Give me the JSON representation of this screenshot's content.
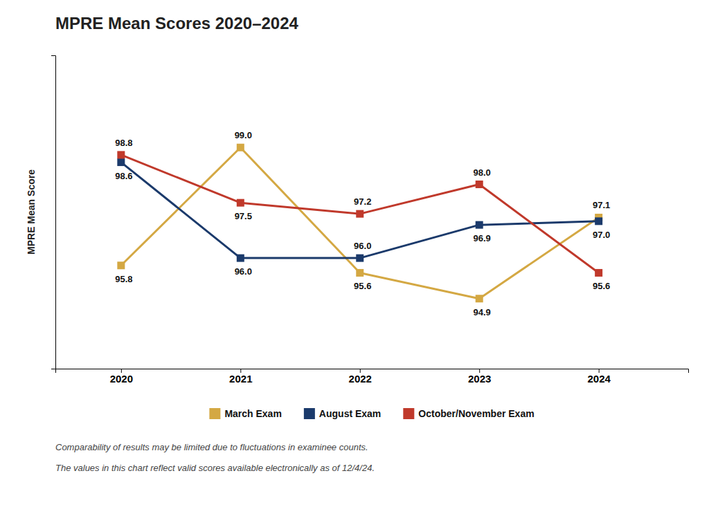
{
  "chart_data": {
    "type": "line",
    "title": "MPRE Mean Scores 2020–2024",
    "y_label": "MPRE Mean Score",
    "x": [
      2020,
      2021,
      2022,
      2023,
      2024
    ],
    "xlim": [
      2019.45,
      2024.75
    ],
    "xticks": [
      2020,
      2021,
      2022,
      2023,
      2024
    ],
    "ylim": [
      93.0,
      101.5
    ],
    "tick_labels": "x",
    "grid": false,
    "legend": "bottom",
    "data_labels": true,
    "marker": "square",
    "series": [
      {
        "name": "March Exam",
        "color": "#D4A843",
        "values": [
          95.8,
          99.0,
          95.6,
          94.9,
          97.1
        ],
        "value_labels": [
          "95.8",
          "99.0",
          "95.6",
          "94.9",
          "97.1"
        ]
      },
      {
        "name": "August Exam",
        "color": "#1B3A6B",
        "values": [
          98.6,
          96.0,
          96.0,
          96.9,
          97.0
        ],
        "value_labels": [
          "98.6",
          "96.0",
          "96.0",
          "96.9",
          "97.0"
        ]
      },
      {
        "name": "October/November Exam",
        "color": "#C0392B",
        "values": [
          98.8,
          97.5,
          97.2,
          98.0,
          95.6
        ],
        "value_labels": [
          "98.8",
          "97.5",
          "97.2",
          "98.0",
          "95.6"
        ]
      }
    ],
    "annotations": [
      "Comparability of results may be limited due to fluctuations in examinee counts.",
      "The values in this chart reflect valid scores available electronically as of 12/4/24."
    ]
  }
}
